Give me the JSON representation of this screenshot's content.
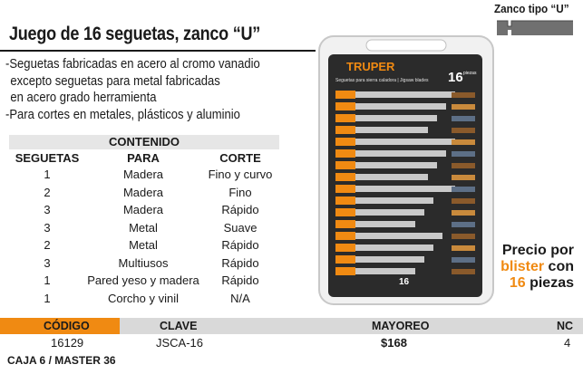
{
  "header": {
    "title": "Juego de 16 seguetas, zanco “U”"
  },
  "features": [
    "-Seguetas fabricadas en acero al cromo vanadio",
    " excepto seguetas para metal fabricadas",
    " en acero grado herramienta",
    "-Para cortes en metales, plásticos y aluminio"
  ],
  "contents": {
    "heading": "CONTENIDO",
    "columns": [
      "SEGUETAS",
      "PARA",
      "CORTE"
    ],
    "rows": [
      [
        "1",
        "Madera",
        "Fino y curvo"
      ],
      [
        "2",
        "Madera",
        "Fino"
      ],
      [
        "3",
        "Madera",
        "Rápido"
      ],
      [
        "3",
        "Metal",
        "Suave"
      ],
      [
        "2",
        "Metal",
        "Rápido"
      ],
      [
        "3",
        "Multiusos",
        "Rápido"
      ],
      [
        "1",
        "Pared yeso y madera",
        "Rápido"
      ],
      [
        "1",
        "Corcho y vinil",
        "N/A"
      ]
    ]
  },
  "shank": {
    "label": "Zanco tipo “U”",
    "icon": "u-shank-icon"
  },
  "product": {
    "brand": "TRUPER",
    "subtitle": "Seguetas para sierra caladora | Jigsaw blades",
    "count": "16",
    "count_label": "piezas",
    "colors": {
      "orange": "#f08a12",
      "blade": "#c9c9c9",
      "tray": "#2b2b2b"
    }
  },
  "price_note": {
    "line1": "Precio por",
    "word_blister": "blister",
    "word_con": " con",
    "count": "16",
    "word_piezas": " piezas"
  },
  "pricing_table": {
    "headers": {
      "codigo": "CÓDIGO",
      "clave": "CLAVE",
      "mayoreo": "MAYOREO",
      "nc": "NC"
    },
    "row": {
      "codigo": "16129",
      "clave": "JSCA-16",
      "mayoreo": "$168",
      "nc": "4"
    }
  },
  "footer": "CAJA 6 / MASTER 36",
  "colors": {
    "accent": "#f08a12",
    "band": "#e6e6e6",
    "header_gray": "#d9d9d9"
  }
}
